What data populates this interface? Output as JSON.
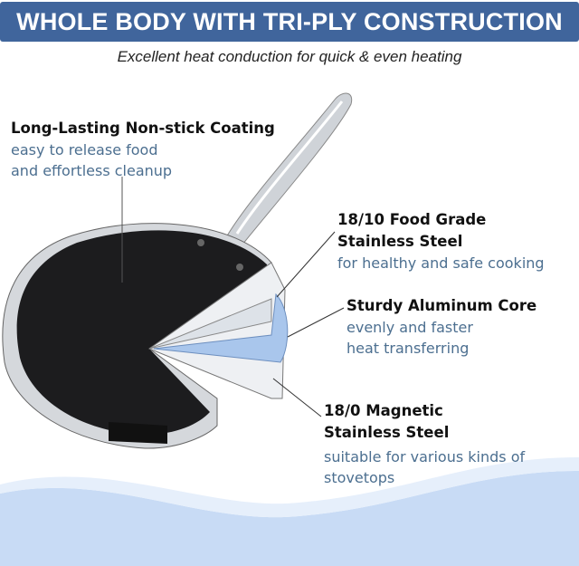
{
  "header": {
    "title": "WHOLE BODY WITH TRI-PLY CONSTRUCTION",
    "subtitle": "Excellent heat conduction for quick & even heating"
  },
  "colors": {
    "banner": "#40659c",
    "description_text": "#4c6f90",
    "wave": "#c8dbf5"
  },
  "callouts": [
    {
      "title": [
        "Long-Lasting Non-stick Coating"
      ],
      "description": [
        "easy to release food",
        "and effortless cleanup"
      ]
    },
    {
      "title": [
        "18/10 Food Grade",
        "Stainless Steel"
      ],
      "description": [
        "for healthy and safe cooking"
      ]
    },
    {
      "title": [
        "Sturdy Aluminum Core"
      ],
      "description": [
        "evenly and faster",
        "heat transferring"
      ]
    },
    {
      "title": [
        "18/0 Magnetic",
        "Stainless Steel"
      ],
      "description": [
        "suitable for various kinds of",
        "stovetops"
      ]
    }
  ]
}
